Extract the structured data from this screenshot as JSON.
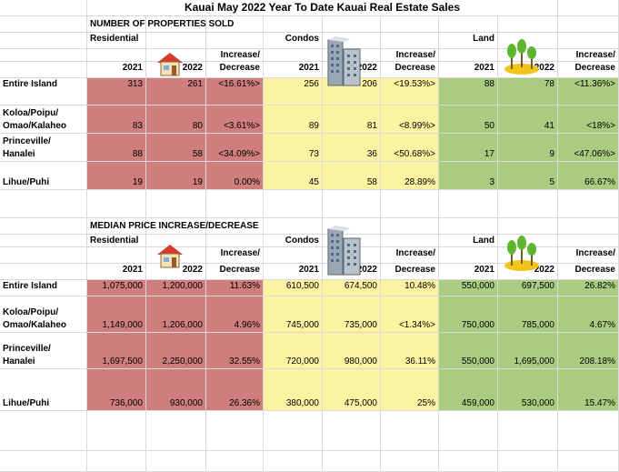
{
  "title": "Kauai May 2022 Year To Date Kauai Real Estate Sales",
  "section_sold": {
    "heading": "NUMBER OF PROPERTIES SOLD",
    "residential_label": "Residential",
    "condos_label": "Condos",
    "land_label": "Land",
    "increase_label": "Increase/",
    "decrease_label": "Decrease",
    "y2021": "2021",
    "y2022": "2022",
    "rows": [
      {
        "area": [
          "Entire Island"
        ],
        "r21": "313",
        "r22": "261",
        "rchg": "<16.61%>",
        "c21": "256",
        "c22": "206",
        "cchg": "<19.53%>",
        "l21": "88",
        "l22": "78",
        "lchg": "<11.36%>"
      },
      {
        "area": [
          "Koloa/Poipu/",
          "Omao/Kalaheo"
        ],
        "r21": "83",
        "r22": "80",
        "rchg": "<3.61%>",
        "c21": "89",
        "c22": "81",
        "cchg": "<8.99%>",
        "l21": "50",
        "l22": "41",
        "lchg": "<18%>"
      },
      {
        "area": [
          "Princeville/",
          "Hanalei"
        ],
        "r21": "88",
        "r22": "58",
        "rchg": "<34.09%>",
        "c21": "73",
        "c22": "36",
        "cchg": "<50.68%>",
        "l21": "17",
        "l22": "9",
        "lchg": "<47.06%>"
      },
      {
        "area": [
          "Lihue/Puhi"
        ],
        "r21": "19",
        "r22": "19",
        "rchg": "0.00%",
        "c21": "45",
        "c22": "58",
        "cchg": "28.89%",
        "l21": "3",
        "l22": "5",
        "lchg": "66.67%"
      }
    ]
  },
  "section_price": {
    "heading": "MEDIAN PRICE INCREASE/DECREASE",
    "residential_label": "Residential",
    "condos_label": "Condos",
    "land_label": "Land",
    "increase_label": "Increase/",
    "decrease_label": "Decrease",
    "y2021": "2021",
    "y2022": "2022",
    "rows": [
      {
        "area": [
          "Entire Island"
        ],
        "r21": "1,075,000",
        "r22": "1,200,000",
        "rchg": "11.63%",
        "c21": "610,500",
        "c22": "674,500",
        "cchg": "10.48%",
        "l21": "550,000",
        "l22": "697,500",
        "lchg": "26.82%"
      },
      {
        "area": [
          "Koloa/Poipu/",
          "Omao/Kalaheo"
        ],
        "r21": "1,149,000",
        "r22": "1,206,000",
        "rchg": "4.96%",
        "c21": "745,000",
        "c22": "735,000",
        "cchg": "<1.34%>",
        "l21": "750,000",
        "l22": "785,000",
        "lchg": "4.67%"
      },
      {
        "area": [
          "Princeville/",
          "Hanalei"
        ],
        "r21": "1,697,500",
        "r22": "2,250,000",
        "rchg": "32.55%",
        "c21": "720,000",
        "c22": "980,000",
        "cchg": "36.11%",
        "l21": "550,000",
        "l22": "1,695,000",
        "lchg": "208.18%"
      },
      {
        "area": [
          "Lihue/Puhi"
        ],
        "r21": "736,000",
        "r22": "930,000",
        "rchg": "26.36%",
        "c21": "380,000",
        "c22": "475,000",
        "cchg": "25%",
        "l21": "459,000",
        "l22": "530,000",
        "lchg": "15.47%"
      }
    ]
  },
  "icons": {
    "house": "house-icon",
    "condo": "condo-building-icon",
    "land": "trees-icon"
  },
  "colors": {
    "residential": "#cf7d7d",
    "condos": "#fcf3a2",
    "land": "#a9cc81",
    "grid": "#d9d9d9"
  }
}
